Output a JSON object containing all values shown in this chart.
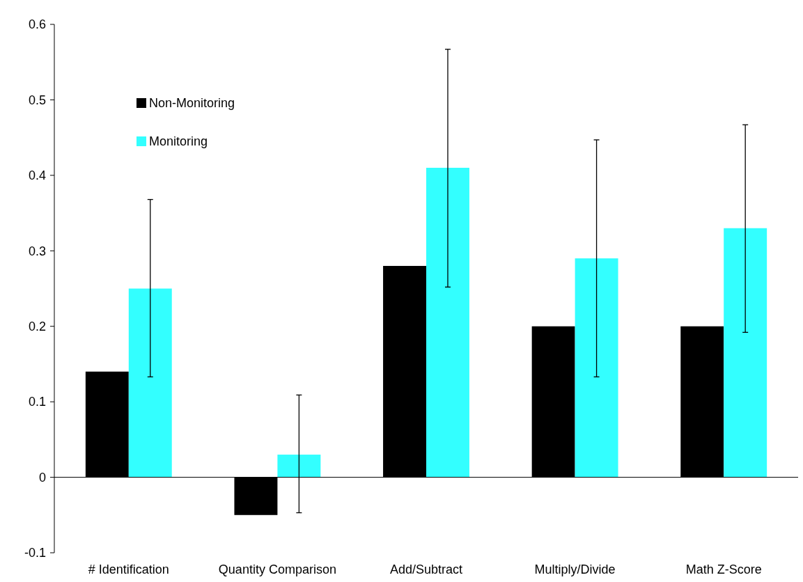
{
  "chart_data": {
    "type": "bar",
    "categories": [
      "# Identification",
      "Quantity Comparison",
      "Add/Subtract",
      "Multiply/Divide",
      "Math Z-Score"
    ],
    "series": [
      {
        "name": "Non-Monitoring",
        "color": "#000000",
        "values": [
          0.14,
          -0.05,
          0.28,
          0.2,
          0.2
        ]
      },
      {
        "name": "Monitoring",
        "color": "#33ffff",
        "values": [
          0.25,
          0.03,
          0.41,
          0.29,
          0.33
        ],
        "errors": [
          [
            0.133,
            0.368
          ],
          [
            -0.047,
            0.109
          ],
          [
            0.252,
            0.567
          ],
          [
            0.133,
            0.447
          ],
          [
            0.192,
            0.467
          ]
        ]
      }
    ],
    "ylim": [
      -0.1,
      0.6
    ],
    "yticks": [
      -0.1,
      0,
      0.1,
      0.2,
      0.3,
      0.4,
      0.5,
      0.6
    ],
    "legend": "top left"
  }
}
